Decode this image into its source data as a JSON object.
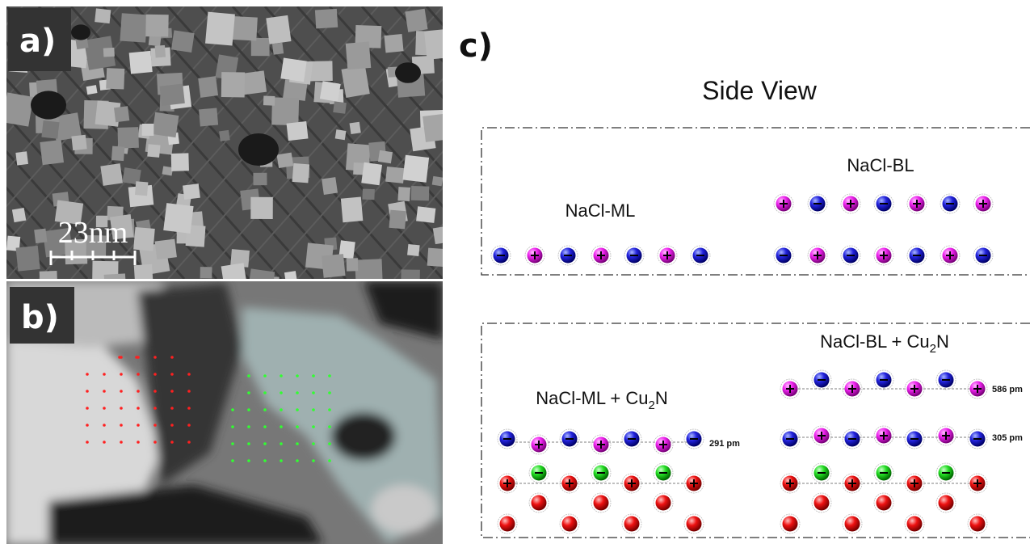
{
  "panels": {
    "a": {
      "label": "a)",
      "scale_bar": "23nm"
    },
    "b": {
      "label": "b)"
    },
    "c": {
      "label": "c)",
      "title": "Side View",
      "top_box": {
        "left_label": "NaCl-ML",
        "right_label": "NaCl-BL"
      },
      "bottom_box": {
        "left_label": {
          "text": "NaCl-ML + Cu",
          "sub": "2",
          "tail": "N"
        },
        "right_label": {
          "text": "NaCl-BL + Cu",
          "sub": "2",
          "tail": "N"
        },
        "left_distance": "291 pm",
        "right_upper_distance": "586 pm",
        "right_lower_distance": "305 pm"
      }
    }
  }
}
